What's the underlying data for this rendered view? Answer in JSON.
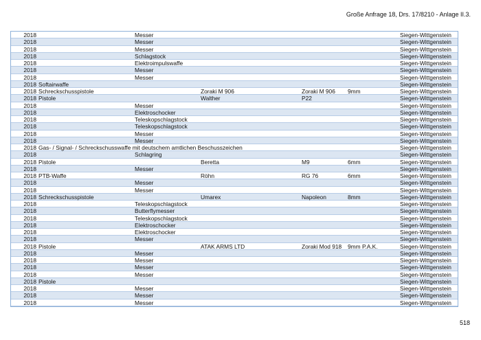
{
  "header": {
    "title": "Große Anfrage 18, Drs. 17/8210 - Anlage II.3."
  },
  "page_number": "518",
  "table": {
    "rows": [
      {
        "year": "2018",
        "item": "Messer",
        "district": "Siegen-Wittgenstein"
      },
      {
        "year": "2018",
        "item": "Messer",
        "district": "Siegen-Wittgenstein"
      },
      {
        "year": "2018",
        "item": "Messer",
        "district": "Siegen-Wittgenstein"
      },
      {
        "year": "2018",
        "item": "Schlagstock",
        "district": "Siegen-Wittgenstein"
      },
      {
        "year": "2018",
        "item": "Elektroimpulswaffe",
        "district": "Siegen-Wittgenstein"
      },
      {
        "year": "2018",
        "item": "Messer",
        "district": "Siegen-Wittgenstein"
      },
      {
        "year": "2018",
        "item": "Messer",
        "district": "Siegen-Wittgenstein"
      },
      {
        "year": "2018",
        "art": "Softairwaffe",
        "district": "Siegen-Wittgenstein"
      },
      {
        "year": "2018",
        "art": "Schreckschusspistole",
        "maker": "Zoraki M 906",
        "model": "Zoraki M 906",
        "caliber": "9mm",
        "district": "Siegen-Wittgenstein"
      },
      {
        "year": "2018",
        "art": "Pistole",
        "maker": "Walther",
        "model": "P22",
        "district": "Siegen-Wittgenstein"
      },
      {
        "year": "2018",
        "item": "Messer",
        "district": "Siegen-Wittgenstein"
      },
      {
        "year": "2018",
        "item": "Elektroschocker",
        "district": "Siegen-Wittgenstein"
      },
      {
        "year": "2018",
        "item": "Teleskopschlagstock",
        "district": "Siegen-Wittgenstein"
      },
      {
        "year": "2018",
        "item": "Teleskopschlagstock",
        "district": "Siegen-Wittgenstein"
      },
      {
        "year": "2018",
        "item": "Messer",
        "district": "Siegen-Wittgenstein"
      },
      {
        "year": "2018",
        "item": "Messer",
        "district": "Siegen-Wittgenstein"
      },
      {
        "year": "2018",
        "art": "Gas- / Signal- / Schreckschusswaffe mit deutschem amtlichen Beschusszeichen",
        "district": "Siegen-Wittgenstein"
      },
      {
        "year": "2018",
        "item": "Schlagring",
        "district": "Siegen-Wittgenstein"
      },
      {
        "year": "2018",
        "art": "Pistole",
        "maker": "Beretta",
        "model": "M9",
        "caliber": "6mm",
        "district": "Siegen-Wittgenstein"
      },
      {
        "year": "2018",
        "item": "Messer",
        "district": "Siegen-Wittgenstein"
      },
      {
        "year": "2018",
        "art": "PTB-Waffe",
        "maker": "Röhn",
        "model": "RG 76",
        "caliber": "6mm",
        "district": "Siegen-Wittgenstein"
      },
      {
        "year": "2018",
        "item": "Messer",
        "district": "Siegen-Wittgenstein"
      },
      {
        "year": "2018",
        "item": "Messer",
        "district": "Siegen-Wittgenstein"
      },
      {
        "year": "2018",
        "art": "Schreckschusspistole",
        "maker": "Umarex",
        "model": "Napoleon",
        "caliber": "8mm",
        "district": "Siegen-Wittgenstein"
      },
      {
        "year": "2018",
        "item": "Teleskopschlagstock",
        "district": "Siegen-Wittgenstein"
      },
      {
        "year": "2018",
        "item": "Butterflymesser",
        "district": "Siegen-Wittgenstein"
      },
      {
        "year": "2018",
        "item": "Teleskopschlagstock",
        "district": "Siegen-Wittgenstein"
      },
      {
        "year": "2018",
        "item": "Elektroschocker",
        "district": "Siegen-Wittgenstein"
      },
      {
        "year": "2018",
        "item": "Elektroschocker",
        "district": "Siegen-Wittgenstein"
      },
      {
        "year": "2018",
        "item": "Messer",
        "district": "Siegen-Wittgenstein"
      },
      {
        "year": "2018",
        "art": "Pistole",
        "maker": "ATAK ARMS LTD",
        "model": "Zoraki Mod 918",
        "caliber": "9mm P.A.K.",
        "district": "Siegen-Wittgenstein"
      },
      {
        "year": "2018",
        "item": "Messer",
        "district": "Siegen-Wittgenstein"
      },
      {
        "year": "2018",
        "item": "Messer",
        "district": "Siegen-Wittgenstein"
      },
      {
        "year": "2018",
        "item": "Messer",
        "district": "Siegen-Wittgenstein"
      },
      {
        "year": "2018",
        "item": "Messer",
        "district": "Siegen-Wittgenstein"
      },
      {
        "year": "2018",
        "art": "Pistole",
        "district": "Siegen-Wittgenstein"
      },
      {
        "year": "2018",
        "item": "Messer",
        "district": "Siegen-Wittgenstein"
      },
      {
        "year": "2018",
        "item": "Messer",
        "district": "Siegen-Wittgenstein"
      },
      {
        "year": "2018",
        "item": "Messer",
        "district": "Siegen-Wittgenstein"
      }
    ]
  }
}
